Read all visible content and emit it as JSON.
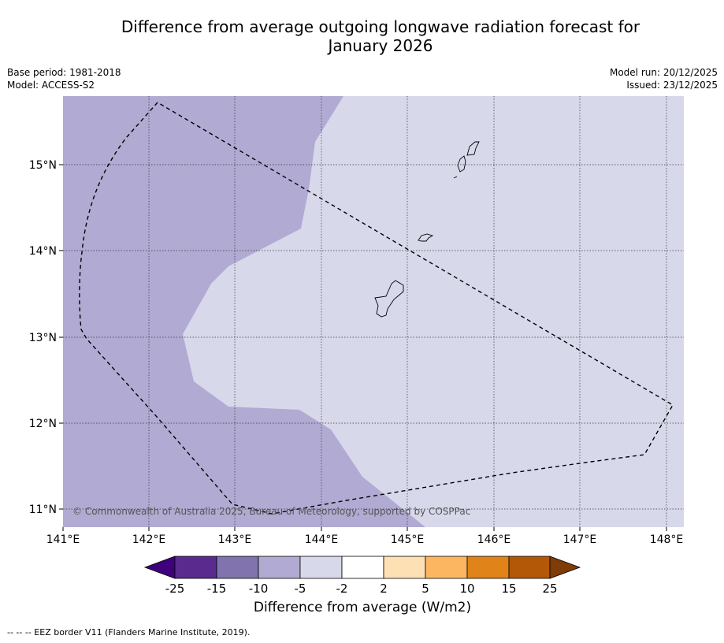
{
  "title": {
    "line1": "Difference from average outgoing longwave radiation forecast for",
    "line2": "January 2026"
  },
  "meta": {
    "base_period": "Base period: 1981-2018",
    "model": "Model: ACCESS-S2",
    "model_run": "Model run: 20/12/2025",
    "issued": "Issued: 23/12/2025"
  },
  "map": {
    "lon_labels": [
      "141°E",
      "142°E",
      "143°E",
      "144°E",
      "145°E",
      "146°E",
      "147°E",
      "148°E"
    ],
    "lat_labels": [
      "15°N",
      "14°N",
      "13°N",
      "12°N",
      "11°N"
    ],
    "extent": {
      "lon": [
        141.0,
        148.2
      ],
      "lat": [
        10.8,
        15.8
      ]
    },
    "copyright": "© Commonwealth of Australia 2025, Bureau of Meteorology, supported by COSPPac",
    "colors": {
      "band_m10_m5": "#b1aad2",
      "band_m5_m2": "#d8d8eb",
      "eez": "#000000",
      "grid": "#333333"
    }
  },
  "colorbar": {
    "ticks": [
      "-25",
      "-15",
      "-10",
      "-5",
      "-2",
      "2",
      "5",
      "10",
      "15",
      "25"
    ],
    "colors": [
      "#3f007d",
      "#5a2a8e",
      "#8073ae",
      "#b1aad2",
      "#d8d8eb",
      "#ffffff",
      "#fee0b5",
      "#fcb662",
      "#e08318",
      "#b35807",
      "#7f3b08"
    ],
    "label": "Difference from average (W/m2)"
  },
  "footnote": "--  --  -- EEZ border V11 (Flanders Marine Institute, 2019)."
}
